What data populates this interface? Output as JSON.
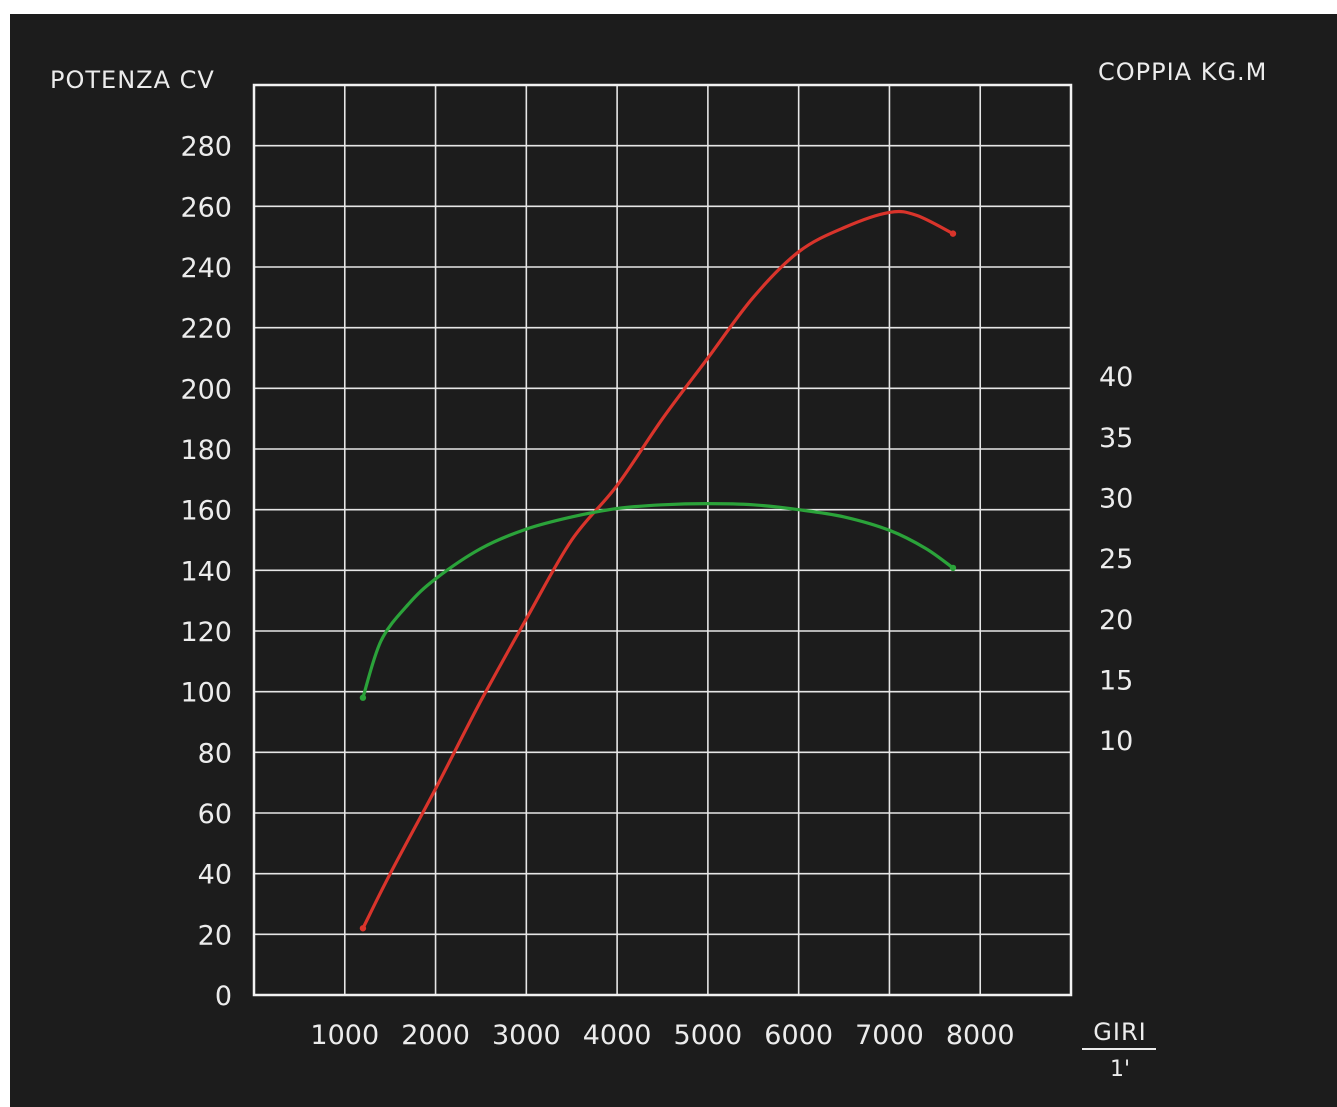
{
  "chart_data": {
    "type": "line",
    "y_left_label": "POTENZA CV",
    "y_right_label": "COPPIA KG.M",
    "x_label": "GIRI",
    "x_unit": "1'",
    "x_ticks": [
      "1000",
      "2000",
      "3000",
      "4000",
      "5000",
      "6000",
      "7000",
      "8000"
    ],
    "y_left_ticks": [
      "0",
      "20",
      "40",
      "60",
      "80",
      "100",
      "120",
      "140",
      "160",
      "180",
      "200",
      "220",
      "240",
      "260",
      "280"
    ],
    "y_right_ticks": [
      "10",
      "15",
      "20",
      "25",
      "30",
      "35",
      "40"
    ],
    "xlim": [
      0,
      9000
    ],
    "ylim_left": [
      0,
      300
    ],
    "grid": true,
    "series": [
      {
        "axis": "left",
        "color": "#d9342b",
        "x": [
          1200,
          1500,
          2000,
          2500,
          3000,
          3500,
          4000,
          4500,
          5000,
          5500,
          6000,
          6500,
          7000,
          7300,
          7700
        ],
        "y": [
          22,
          40,
          68,
          97,
          124,
          150,
          168,
          190,
          210,
          230,
          245,
          253,
          258,
          257,
          251
        ]
      },
      {
        "axis": "right",
        "color": "#2ba33a",
        "x": [
          1200,
          1400,
          1700,
          2000,
          2500,
          3000,
          3500,
          4000,
          4500,
          5000,
          5500,
          6000,
          6500,
          7000,
          7400,
          7700
        ],
        "y": [
          13.5,
          18.2,
          21.2,
          23.3,
          25.8,
          27.4,
          28.4,
          29.1,
          29.4,
          29.5,
          29.4,
          29.0,
          28.4,
          27.3,
          25.8,
          24.2
        ]
      }
    ]
  }
}
